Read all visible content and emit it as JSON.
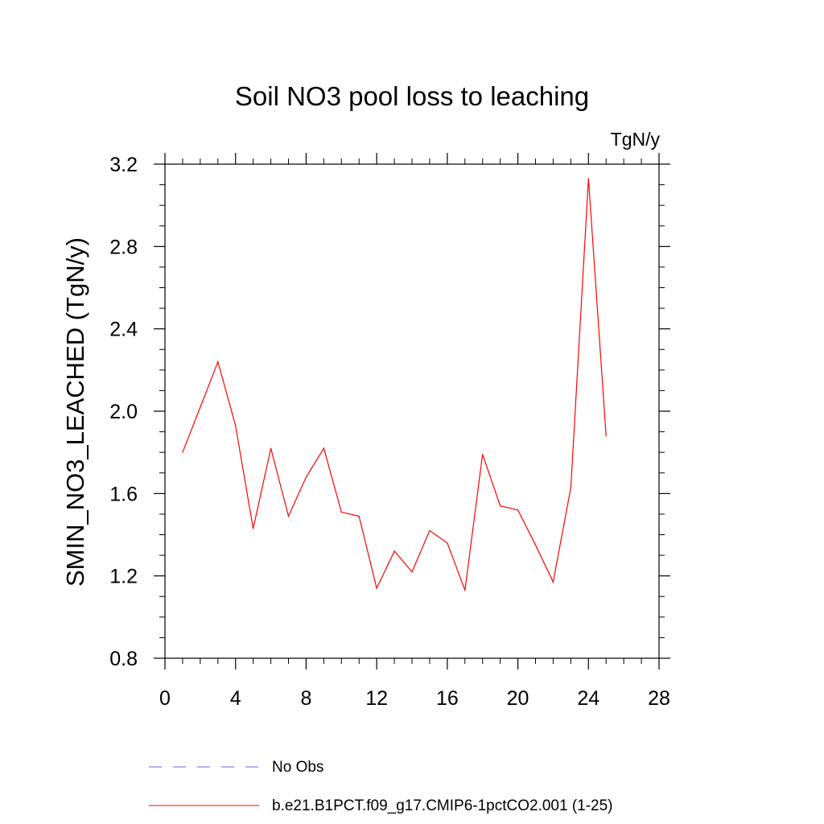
{
  "chart_data": {
    "type": "line",
    "title": "Soil NO3 pool loss to leaching",
    "units": "TgN/y",
    "ylabel": "SMIN_NO3_LEACHED  (TgN/y)",
    "xlabel": "",
    "xlim": [
      0,
      28
    ],
    "ylim": [
      0.8,
      3.2
    ],
    "xticks": [
      0,
      4,
      8,
      12,
      16,
      20,
      24,
      28
    ],
    "xtick_labels": [
      "0",
      "4",
      "8",
      "12",
      "16",
      "20",
      "24",
      "28"
    ],
    "yticks": [
      0.8,
      1.2,
      1.6,
      2.0,
      2.4,
      2.8,
      3.2
    ],
    "ytick_labels": [
      "0.8",
      "1.2",
      "1.6",
      "2.0",
      "2.4",
      "2.8",
      "3.2"
    ],
    "grid": false,
    "legend_position": "bottom",
    "legend": [
      {
        "label": "No Obs",
        "color": "#6666cc",
        "style": "dashed"
      },
      {
        "label": "b.e21.B1PCT.f09_g17.CMIP6-1pctCO2.001 (1-25)",
        "color": "#ff0000",
        "style": "solid"
      }
    ],
    "series": [
      {
        "color": "#ff0000",
        "x": [
          1,
          2,
          3,
          4,
          5,
          6,
          7,
          8,
          9,
          10,
          11,
          12,
          13,
          14,
          15,
          16,
          17,
          18,
          19,
          20,
          21,
          22,
          23,
          24,
          25
        ],
        "y": [
          1.8,
          2.02,
          2.24,
          1.93,
          1.43,
          1.82,
          1.49,
          1.68,
          1.82,
          1.51,
          1.49,
          1.14,
          1.32,
          1.22,
          1.42,
          1.36,
          1.13,
          1.79,
          1.54,
          1.52,
          1.35,
          1.17,
          1.63,
          3.13,
          1.88
        ]
      }
    ]
  }
}
